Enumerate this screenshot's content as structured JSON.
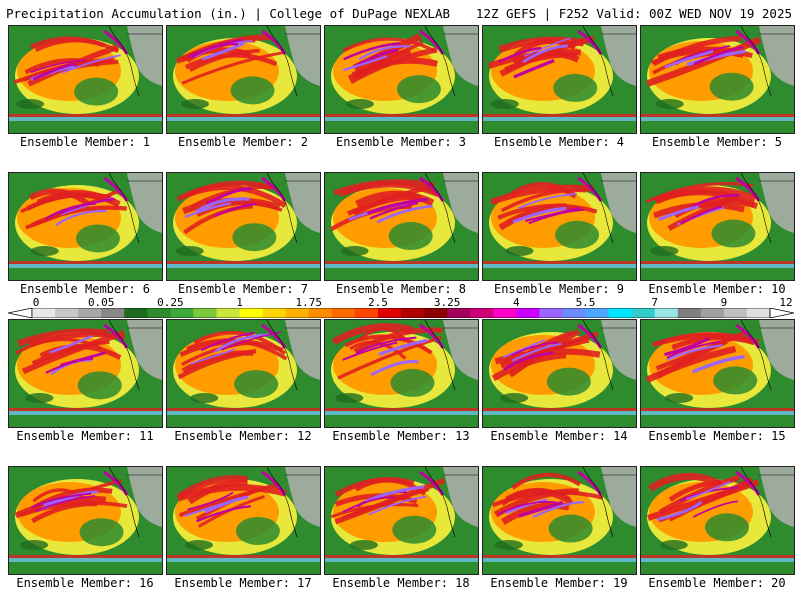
{
  "header": {
    "left": "Precipitation Accumulation (in.) | College of DuPage NEXLAB",
    "right": "12Z GEFS | F252 Valid: 00Z WED NOV 19 2025"
  },
  "member_prefix": "Ensemble Member: ",
  "members": [
    "1",
    "2",
    "3",
    "4",
    "5",
    "6",
    "7",
    "8",
    "9",
    "10",
    "11",
    "12",
    "13",
    "14",
    "15",
    "16",
    "17",
    "18",
    "19",
    "20"
  ],
  "colorbar": {
    "labels": [
      "0",
      "0.05",
      "0.25",
      "1",
      "1.75",
      "2.5",
      "3.25",
      "4",
      "5.5",
      "7",
      "9",
      "12"
    ],
    "colors": [
      "#e8e8e8",
      "#c8c8c8",
      "#a8a8a8",
      "#888888",
      "#1f6b1f",
      "#2e8b2e",
      "#3cab3c",
      "#7ec83c",
      "#c8e63c",
      "#ffff00",
      "#ffd700",
      "#ffb000",
      "#ff8c00",
      "#ff6a00",
      "#ff4500",
      "#e00000",
      "#b00000",
      "#8b0000",
      "#a0005a",
      "#d0007a",
      "#ff00c8",
      "#cc00ff",
      "#9a66ff",
      "#6b8cff",
      "#4da6ff",
      "#00e5ff",
      "#33cccc",
      "#99e6e6",
      "#808080",
      "#a0a0a0",
      "#c0c0c0",
      "#e0e0e0"
    ]
  },
  "map_colors": {
    "land": "#2e8b2e",
    "dark_green": "#1f6b1f",
    "yellow": "#e8e83c",
    "orange": "#ff9c00",
    "red": "#e02020",
    "magenta": "#c000a0",
    "purple": "#9a66ff",
    "cyan": "#4dd0e1",
    "gray": "#b0b0b0"
  }
}
